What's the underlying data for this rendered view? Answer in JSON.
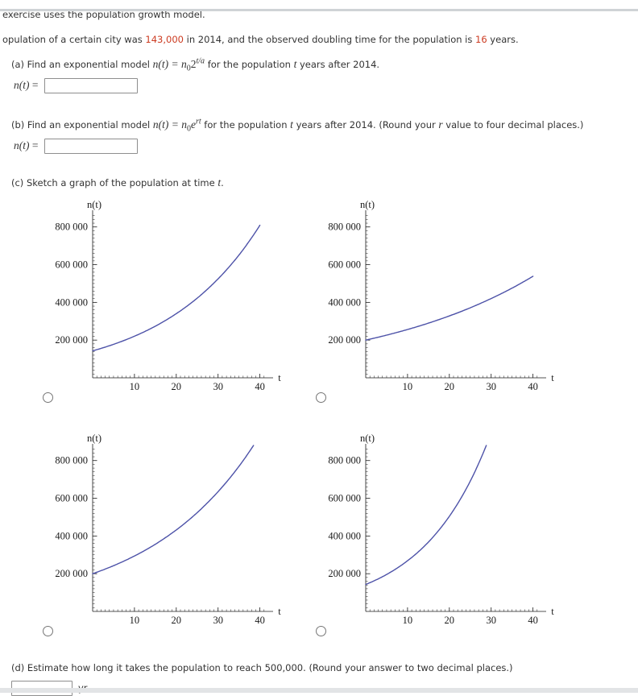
{
  "colors": {
    "text": "#333333",
    "accent_red": "#cc3b21",
    "curve": "#4d52a8",
    "axis": "#1a1a1a"
  },
  "header": {
    "line1": "exercise uses the population growth model."
  },
  "intro": {
    "pre": "opulation of a certain city was ",
    "value1": "143,000",
    "mid": " in 2014, and the observed doubling time for the population is ",
    "value2": "16",
    "post": " years."
  },
  "part_a": {
    "label_pre": "(a) Find an exponential model ",
    "math": {
      "lead": "n(t) = n",
      "sub": "0",
      "base": "2",
      "sup": "t/a"
    },
    "mid": " for the population ",
    "var_t": "t",
    "post": " years after 2014.",
    "answer": {
      "lead": "n(t)",
      "eq": " = ",
      "value": ""
    }
  },
  "part_b": {
    "label_pre": "(b) Find an exponential model ",
    "math": {
      "lead": "n(t) = n",
      "sub": "0",
      "base": "e",
      "sup": "rt"
    },
    "mid": " for the population ",
    "var_t": "t",
    "post": " years after 2014. (Round your ",
    "var_r": "r",
    "post2": " value to four decimal places.)",
    "answer": {
      "lead": "n(t)",
      "eq": " = ",
      "value": ""
    }
  },
  "part_c": {
    "pre": "(c) Sketch a graph of the population at time ",
    "var_t": "t",
    "post": "."
  },
  "part_d": {
    "text": "(d) Estimate how long it takes the population to reach 500,000. (Round your answer to two decimal places.)",
    "unit": "yr",
    "value": ""
  },
  "chart_data": [
    {
      "id": "graph-1",
      "position": "top-left",
      "type": "line",
      "ylabel": "n(t)",
      "xlabel": "t",
      "xlim": [
        0,
        42
      ],
      "ylim": [
        0,
        880000
      ],
      "x_ticks": [
        10,
        20,
        30,
        40
      ],
      "x_minor_step": 1,
      "y_ticks": [
        200000,
        400000,
        600000,
        800000
      ],
      "y_tick_labels": [
        "200 000",
        "400 000",
        "600 000",
        "800 000"
      ],
      "y_minor_step": 20000,
      "grid": false,
      "curve": {
        "model": "n(t) = n0*2^(t/T)",
        "n0": 143000,
        "T": 16,
        "t_start": 0,
        "t_end": 40
      },
      "approx_points": {
        "t": [
          0,
          10,
          20,
          30,
          40
        ],
        "n": [
          143000,
          220500,
          340100,
          524500,
          808900
        ]
      }
    },
    {
      "id": "graph-2",
      "position": "top-right",
      "type": "line",
      "ylabel": "n(t)",
      "xlabel": "t",
      "xlim": [
        0,
        42
      ],
      "ylim": [
        0,
        880000
      ],
      "x_ticks": [
        10,
        20,
        30,
        40
      ],
      "x_minor_step": 1,
      "y_ticks": [
        200000,
        400000,
        600000,
        800000
      ],
      "y_tick_labels": [
        "200 000",
        "400 000",
        "600 000",
        "800 000"
      ],
      "y_minor_step": 20000,
      "grid": false,
      "curve": {
        "model": "n(t) = n0*2^(t/T)",
        "n0": 200000,
        "T": 28,
        "t_start": 0,
        "t_end": 40
      },
      "approx_points": {
        "t": [
          0,
          10,
          20,
          30,
          40
        ],
        "n": [
          200000,
          256200,
          328100,
          420200,
          538400
        ]
      }
    },
    {
      "id": "graph-3",
      "position": "bottom-left",
      "type": "line",
      "ylabel": "n(t)",
      "xlabel": "t",
      "xlim": [
        0,
        42
      ],
      "ylim": [
        0,
        880000
      ],
      "x_ticks": [
        10,
        20,
        30,
        40
      ],
      "x_minor_step": 1,
      "y_ticks": [
        200000,
        400000,
        600000,
        800000
      ],
      "y_tick_labels": [
        "200 000",
        "400 000",
        "600 000",
        "800 000"
      ],
      "y_minor_step": 20000,
      "grid": false,
      "curve": {
        "model": "n(t) = n0*2^(t/T)",
        "n0": 200000,
        "T": 18,
        "t_start": 0,
        "t_end": 40
      },
      "approx_points": {
        "t": [
          0,
          10,
          20,
          30
        ],
        "n": [
          200000,
          293900,
          432000,
          635000
        ],
        "exits_top_at_t": 38.4
      }
    },
    {
      "id": "graph-4",
      "position": "bottom-right",
      "type": "line",
      "ylabel": "n(t)",
      "xlabel": "t",
      "xlim": [
        0,
        42
      ],
      "ylim": [
        0,
        880000
      ],
      "x_ticks": [
        10,
        20,
        30,
        40
      ],
      "x_minor_step": 1,
      "y_ticks": [
        200000,
        400000,
        600000,
        800000
      ],
      "y_tick_labels": [
        "200 000",
        "400 000",
        "600 000",
        "800 000"
      ],
      "y_minor_step": 20000,
      "grid": false,
      "curve": {
        "model": "n(t) = n0*2^(t/T)",
        "n0": 143000,
        "T": 11,
        "t_start": 0,
        "t_end": 40
      },
      "approx_points": {
        "t": [
          0,
          10,
          20
        ],
        "n": [
          143000,
          268600,
          504600
        ],
        "exits_top_at_t": 28.8
      }
    }
  ]
}
